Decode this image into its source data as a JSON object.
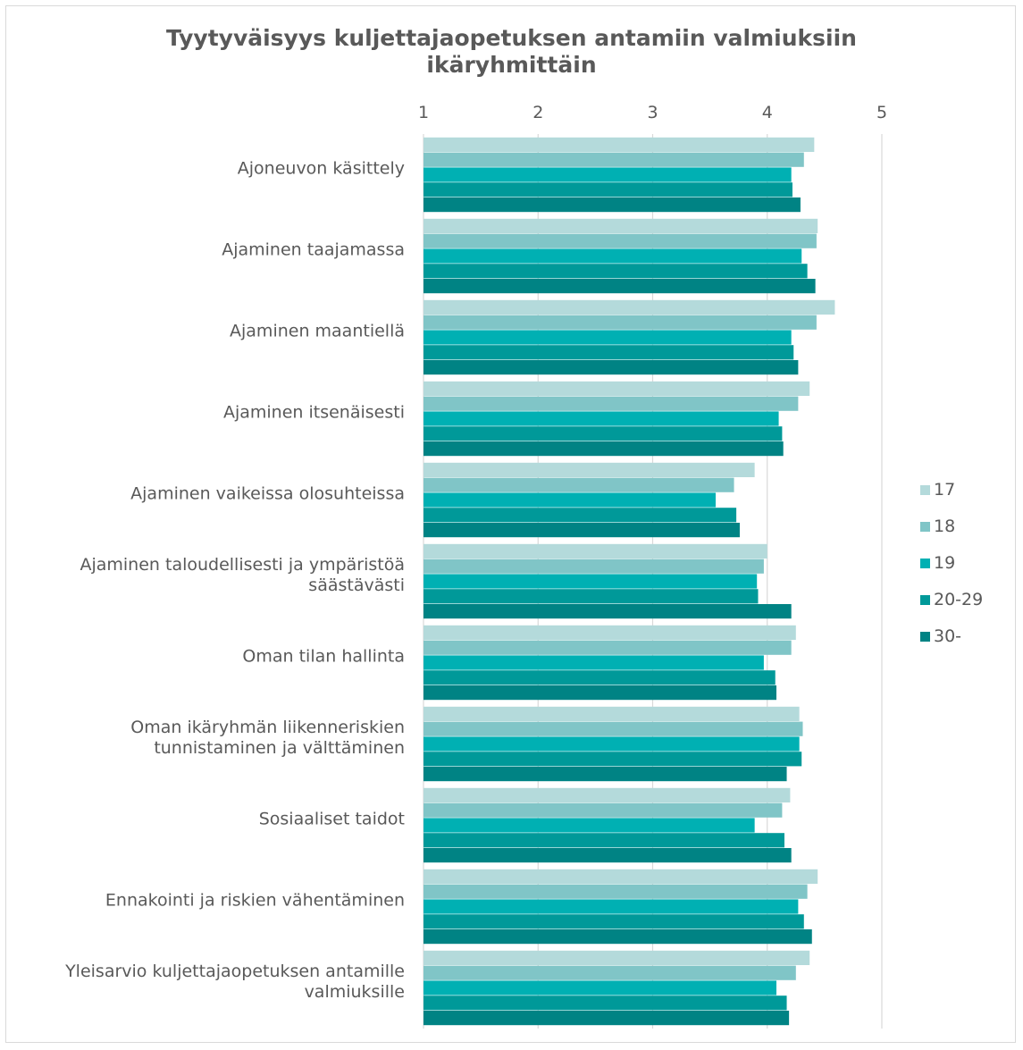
{
  "chart_data": {
    "type": "bar",
    "orientation": "horizontal",
    "title": "Tyytyväisyys kuljettajaopetuksen antamiin valmiuksiin ikäryhmittäin",
    "title_lines": [
      "Tyytyväisyys kuljettajaopetuksen antamiin valmiuksiin",
      "ikäryhmittäin"
    ],
    "xlim": [
      1,
      5
    ],
    "ticks": [
      "1",
      "2",
      "3",
      "4",
      "5"
    ],
    "grid": true,
    "legend_position": "right",
    "categories": [
      [
        "Ajoneuvon käsittely"
      ],
      [
        "Ajaminen taajamassa"
      ],
      [
        "Ajaminen maantiellä"
      ],
      [
        "Ajaminen itsenäisesti"
      ],
      [
        "Ajaminen vaikeissa olosuhteissa"
      ],
      [
        "Ajaminen taloudellisesti ja ympäristöä",
        "säästävästi"
      ],
      [
        "Oman tilan hallinta"
      ],
      [
        "Oman ikäryhmän liikenneriskien",
        "tunnistaminen ja välttäminen"
      ],
      [
        "Sosiaaliset taidot"
      ],
      [
        "Ennakointi ja riskien vähentäminen"
      ],
      [
        "Yleisarvio kuljettajaopetuksen antamille",
        "valmiuksille"
      ]
    ],
    "series": [
      {
        "name": "17",
        "color": "#b4dadb",
        "values": [
          4.41,
          4.44,
          4.59,
          4.37,
          3.89,
          4.0,
          4.25,
          4.28,
          4.2,
          4.44,
          4.37
        ]
      },
      {
        "name": "18",
        "color": "#80c5c7",
        "values": [
          4.32,
          4.43,
          4.43,
          4.27,
          3.71,
          3.97,
          4.21,
          4.31,
          4.13,
          4.35,
          4.25
        ]
      },
      {
        "name": "19",
        "color": "#00b0b3",
        "values": [
          4.21,
          4.3,
          4.21,
          4.1,
          3.55,
          3.91,
          3.97,
          4.28,
          3.89,
          4.27,
          4.08
        ]
      },
      {
        "name": "20-29",
        "color": "#009999",
        "values": [
          4.22,
          4.35,
          4.23,
          4.13,
          3.73,
          3.92,
          4.07,
          4.3,
          4.15,
          4.32,
          4.17
        ]
      },
      {
        "name": "30-",
        "color": "#008384",
        "values": [
          4.29,
          4.42,
          4.27,
          4.14,
          3.76,
          4.21,
          4.08,
          4.17,
          4.21,
          4.39,
          4.19
        ]
      }
    ]
  }
}
